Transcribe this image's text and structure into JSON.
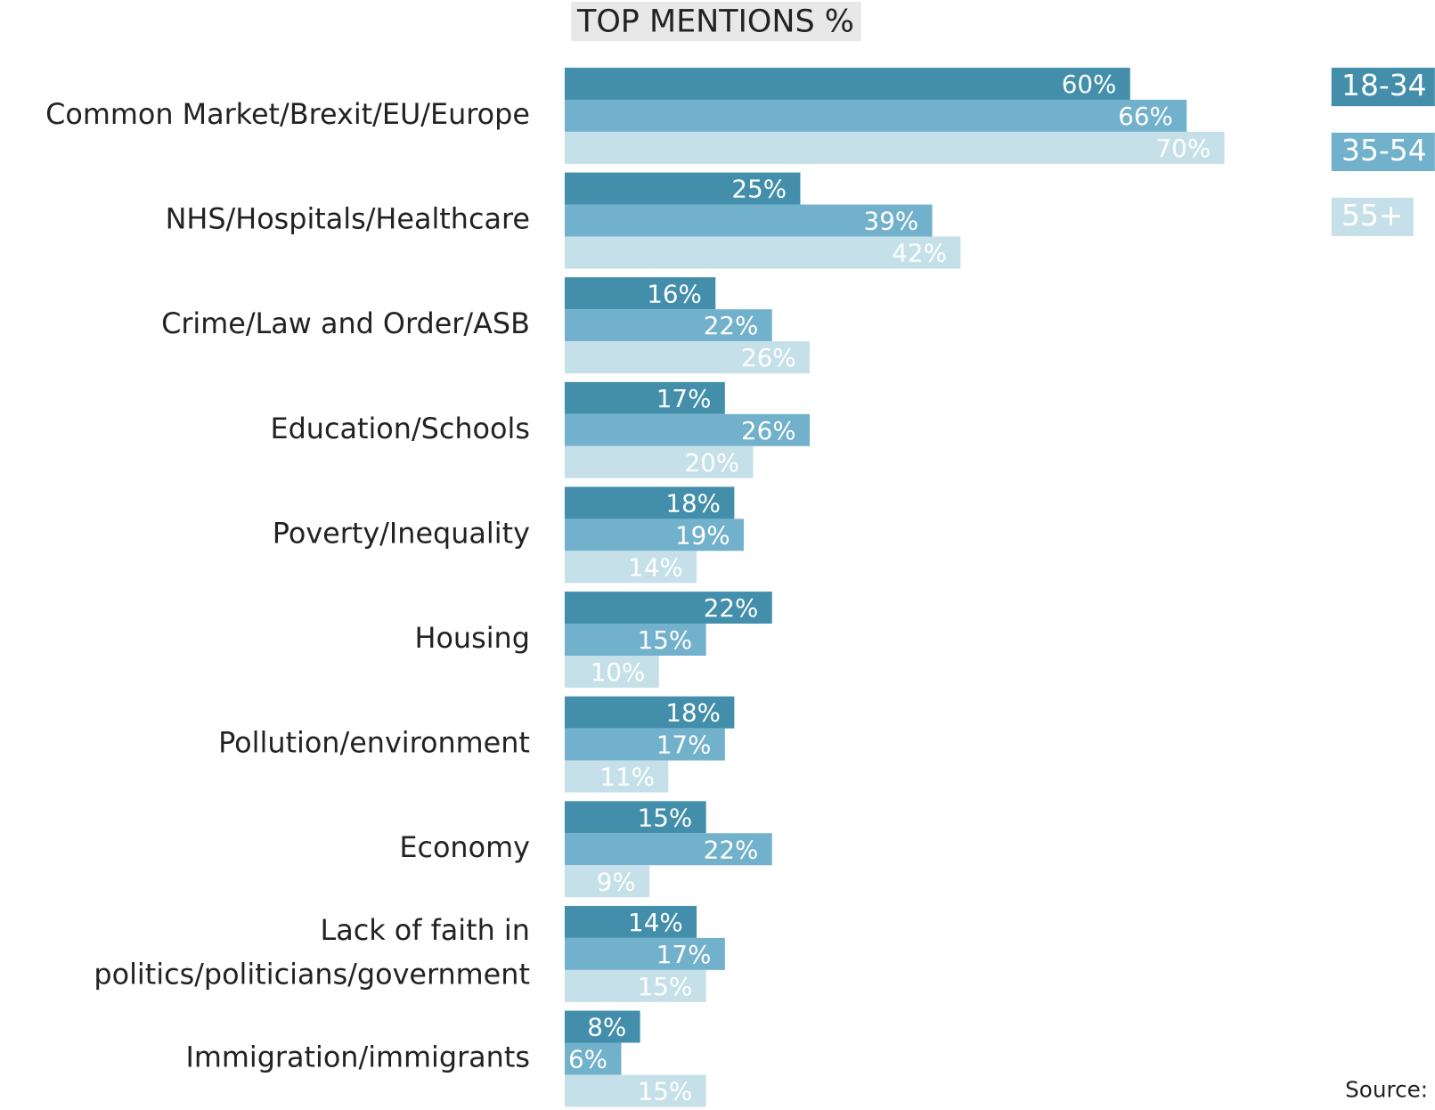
{
  "chart_data": {
    "type": "bar",
    "orientation": "horizontal",
    "title": "TOP MENTIONS %",
    "source": "Source: I",
    "categories": [
      "Common Market/Brexit/EU/Europe",
      "NHS/Hospitals/Healthcare",
      "Crime/Law and Order/ASB",
      "Education/Schools",
      "Poverty/Inequality",
      "Housing",
      "Pollution/environment",
      "Economy",
      "Lack of faith in politics/politicians/government",
      "Immigration/immigrants"
    ],
    "series": [
      {
        "name": "18-34",
        "color": "#428eab",
        "values": [
          60,
          25,
          16,
          17,
          18,
          22,
          18,
          15,
          14,
          8
        ],
        "value_labels": [
          "60%",
          "25%",
          "16%",
          "17%",
          "18%",
          "22%",
          "18%",
          "15%",
          "14%",
          "8%"
        ]
      },
      {
        "name": "35-54",
        "color": "#72b1cb",
        "values": [
          66,
          39,
          22,
          26,
          19,
          15,
          17,
          22,
          17,
          6
        ],
        "value_labels": [
          "66%",
          "39%",
          "22%",
          "26%",
          "19%",
          "15%",
          "17%",
          "22%",
          "17%",
          "6%"
        ]
      },
      {
        "name": "55+",
        "color": "#c5e0e9",
        "values": [
          70,
          42,
          26,
          20,
          14,
          10,
          11,
          9,
          15,
          15
        ],
        "value_labels": [
          "70%",
          "42%",
          "26%",
          "20%",
          "14%",
          "10%",
          "11%",
          "9%",
          "15%",
          "15%"
        ]
      }
    ],
    "legend": "top-right"
  }
}
